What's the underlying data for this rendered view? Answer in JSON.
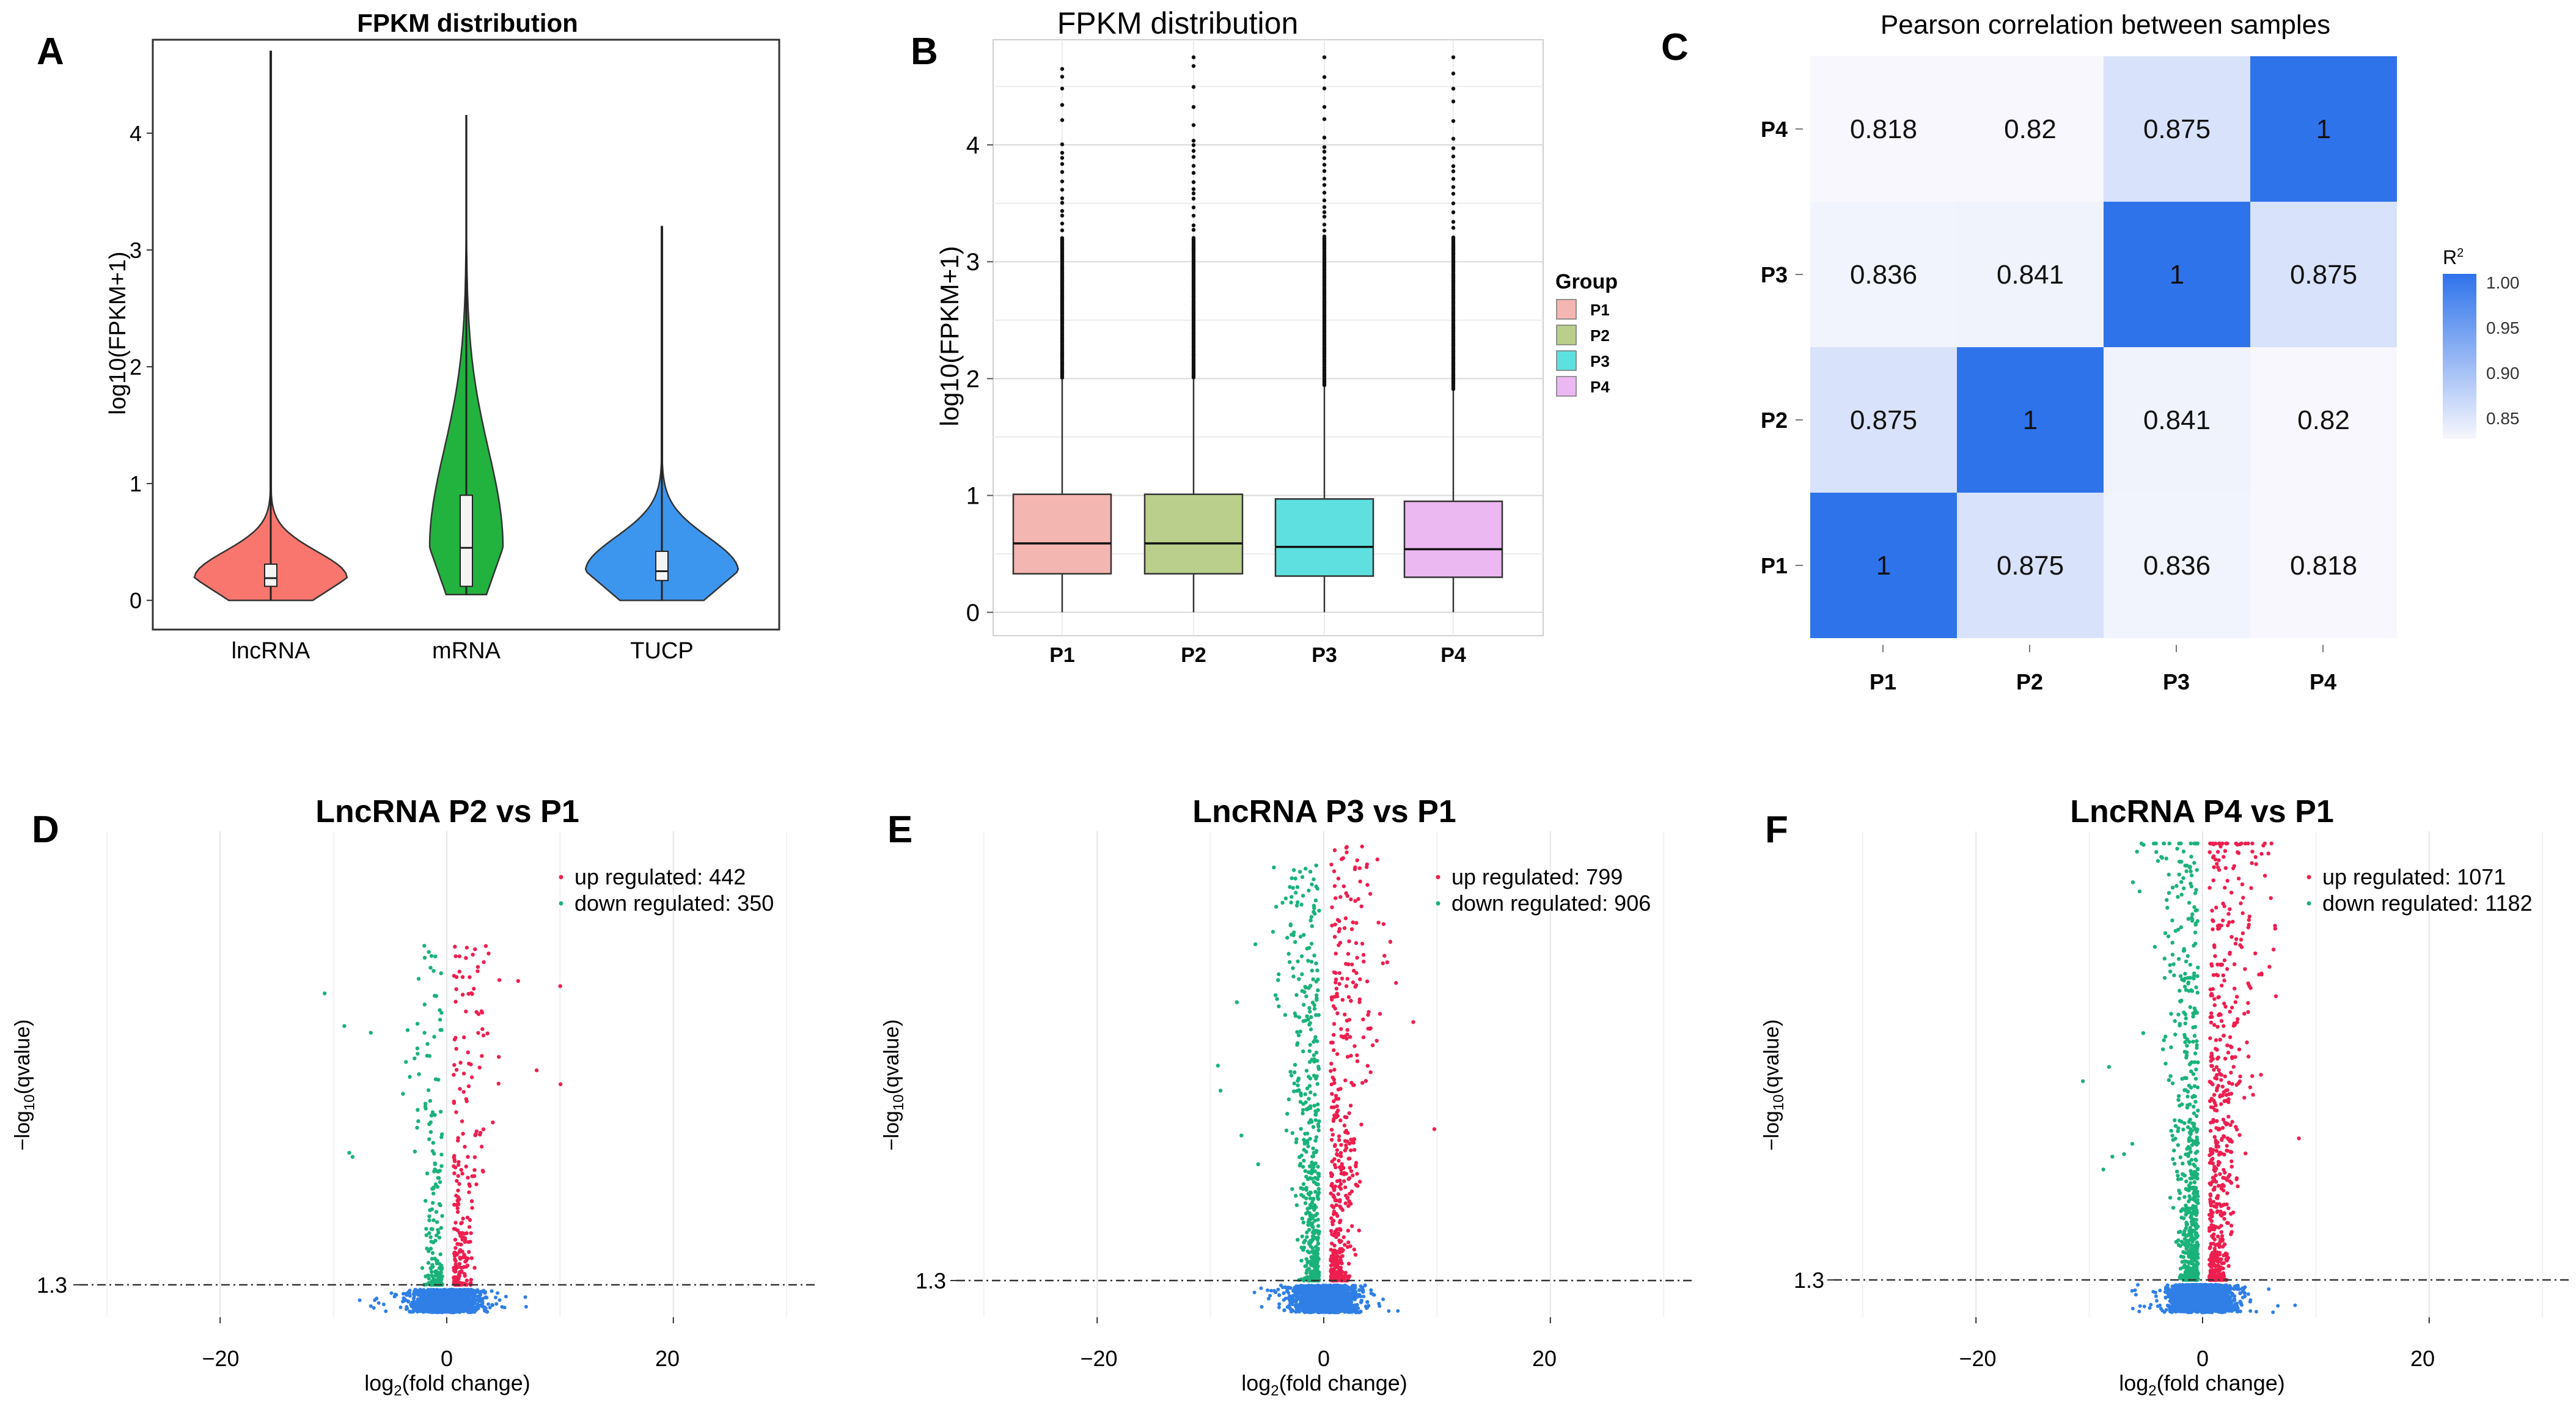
{
  "colors": {
    "lncRNA": "#f8766d",
    "mRNA": "#22b33f",
    "TUCP": "#3d96ee",
    "P1": "#f4b6b1",
    "P2": "#b9cf8b",
    "P3": "#5ee0e0",
    "P4": "#ecb8f2",
    "up": "#ee1f4f",
    "down": "#1ab27a",
    "ns": "#2f7fe6",
    "heat_high": "#2f73eb",
    "heat_low": "#f7f7fd"
  },
  "panels": {
    "A": {
      "letter": "A",
      "chart_data": {
        "type": "violin",
        "title": "FPKM distribution",
        "ylabel": "log10(FPKM+1)",
        "ylim": [
          -0.25,
          4.8
        ],
        "yticks": [
          "0",
          "1",
          "2",
          "3",
          "4"
        ],
        "categories": [
          "lncRNA",
          "mRNA",
          "TUCP"
        ],
        "series": [
          {
            "name": "lncRNA",
            "min": 0.0,
            "q1": 0.12,
            "median": 0.19,
            "q3": 0.31,
            "max": 4.7,
            "bulk_top": 1.35
          },
          {
            "name": "mRNA",
            "min": 0.05,
            "q1": 0.12,
            "median": 0.45,
            "q3": 0.9,
            "max": 4.15,
            "bulk_top": 2.95
          },
          {
            "name": "TUCP",
            "min": 0.0,
            "q1": 0.17,
            "median": 0.25,
            "q3": 0.42,
            "max": 3.2,
            "bulk_top": 1.5
          }
        ]
      }
    },
    "B": {
      "letter": "B",
      "chart_data": {
        "type": "box",
        "title": "FPKM distribution",
        "ylabel": "log10(FPKM+1)",
        "ylim": [
          -0.2,
          4.9
        ],
        "yticks": [
          "0",
          "1",
          "2",
          "3",
          "4"
        ],
        "categories": [
          "P1",
          "P2",
          "P3",
          "P4"
        ],
        "legend_title": "Group",
        "legend": [
          "P1",
          "P2",
          "P3",
          "P4"
        ],
        "series": [
          {
            "name": "P1",
            "min": 0.0,
            "q1": 0.33,
            "median": 0.59,
            "q3": 1.01,
            "whisker_top": 2.0,
            "outlier_max": 4.65
          },
          {
            "name": "P2",
            "min": 0.0,
            "q1": 0.33,
            "median": 0.59,
            "q3": 1.01,
            "whisker_top": 2.0,
            "outlier_max": 4.75
          },
          {
            "name": "P3",
            "min": 0.0,
            "q1": 0.31,
            "median": 0.56,
            "q3": 0.97,
            "whisker_top": 1.93,
            "outlier_max": 4.75
          },
          {
            "name": "P4",
            "min": 0.0,
            "q1": 0.3,
            "median": 0.54,
            "q3": 0.95,
            "whisker_top": 1.9,
            "outlier_max": 4.75
          }
        ]
      }
    },
    "C": {
      "letter": "C",
      "chart_data": {
        "type": "heatmap",
        "title": "Pearson correlation between samples",
        "rows": [
          "P4",
          "P3",
          "P2",
          "P1"
        ],
        "cols": [
          "P1",
          "P2",
          "P3",
          "P4"
        ],
        "values": [
          [
            "0.818",
            "0.82",
            "0.875",
            "1"
          ],
          [
            "0.836",
            "0.841",
            "1",
            "0.875"
          ],
          [
            "0.875",
            "1",
            "0.841",
            "0.82"
          ],
          [
            "1",
            "0.875",
            "0.836",
            "0.818"
          ]
        ],
        "legend_title": "R",
        "legend_sup": "2",
        "legend_ticks": [
          "1.00",
          "0.95",
          "0.90",
          "0.85"
        ],
        "range": [
          0.818,
          1.0
        ]
      }
    },
    "volcano_axis": {
      "xlabel": "log",
      "xlabel_sub": "2",
      "xlabel_rest": "(fold change)",
      "ylabel_pre": "−log",
      "ylabel_sub": "10",
      "ylabel_rest": "(qvalue)",
      "threshold_label": "1.3",
      "xticks": [
        "−20",
        "0",
        "20"
      ],
      "xlim": [
        -32,
        33
      ]
    },
    "D": {
      "letter": "D",
      "chart_data": {
        "type": "scatter",
        "title": "LncRNA P2 vs P1",
        "up_label": "up regulated: 442",
        "down_label": "down regulated: 350",
        "up_count": 442,
        "down_count": 350,
        "spread_up": 1.0,
        "spread_down": 1.0,
        "height_max": 18,
        "xlim": [
          -32,
          33
        ],
        "threshold": 1.3
      }
    },
    "E": {
      "letter": "E",
      "chart_data": {
        "type": "scatter",
        "title": "LncRNA P3 vs P1",
        "up_label": "up regulated: 799",
        "down_label": "down regulated: 906",
        "up_count": 799,
        "down_count": 906,
        "spread_up": 1.3,
        "spread_down": 1.25,
        "height_max": 18,
        "xlim": [
          -32,
          33
        ],
        "threshold": 1.3
      }
    },
    "F": {
      "letter": "F",
      "chart_data": {
        "type": "scatter",
        "title": "LncRNA P4 vs P1",
        "up_label": "up regulated: 1071",
        "down_label": "down regulated: 1182",
        "up_count": 1071,
        "down_count": 1182,
        "spread_up": 1.4,
        "spread_down": 1.35,
        "height_max": 18,
        "xlim": [
          -32,
          33
        ],
        "threshold": 1.3
      }
    }
  }
}
